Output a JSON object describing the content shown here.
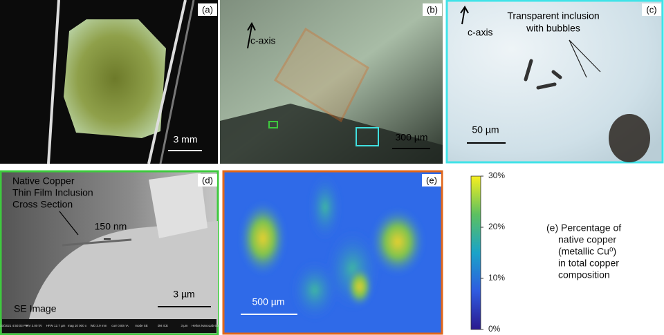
{
  "panels": {
    "a": {
      "label": "(a)",
      "scale": "3 mm"
    },
    "b": {
      "label": "(b)",
      "axis": "c-axis",
      "scale": "300 µm"
    },
    "c": {
      "label": "(c)",
      "axis": "c-axis",
      "annotation": [
        "Transparent inclusion",
        "with bubbles"
      ],
      "scale": "50 µm"
    },
    "d": {
      "label": "(d)",
      "annotation": [
        "Native Copper",
        "Thin Film Inclusion",
        "Cross Section"
      ],
      "thickness": "150 nm",
      "scale": "3 µm",
      "detector": "SE Image",
      "info_bar": [
        "8/10/2021 4:50:03 PM",
        "HV 3.00 kV",
        "HFW 12.7 µm",
        "mag 10 000 x",
        "WD 3.9 mm",
        "curr 0.80 nA",
        "mode SE",
        "det ICE",
        "3 µm",
        "Helios NanoLab 650"
      ]
    },
    "e": {
      "label": "(e)",
      "scale": "500 µm"
    }
  },
  "colorbar": {
    "range": [
      0,
      30
    ],
    "ticks": [
      {
        "value": 0,
        "label": "0%"
      },
      {
        "value": 10,
        "label": "10%"
      },
      {
        "value": 20,
        "label": "20%"
      },
      {
        "value": 30,
        "label": "30%"
      }
    ]
  },
  "caption": [
    "(e) Percentage of",
    "native copper",
    "(metallic Cu⁰)",
    "in total copper",
    "composition"
  ]
}
